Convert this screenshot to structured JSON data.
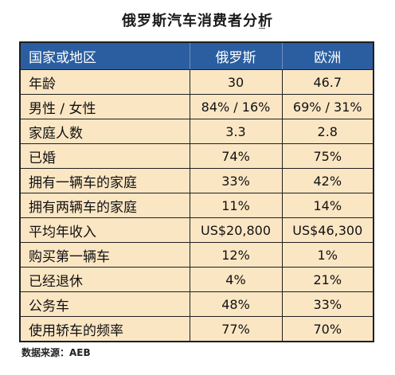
{
  "title": "俄罗斯汽车消费者分析",
  "table": {
    "headers": [
      "国家或地区",
      "俄罗斯",
      "欧洲"
    ],
    "rows": [
      {
        "label": "年龄",
        "russia": "30",
        "europe": "46.7"
      },
      {
        "label": "男性 / 女性",
        "russia": "84% / 16%",
        "europe": "69% / 31%"
      },
      {
        "label": "家庭人数",
        "russia": "3.3",
        "europe": "2.8"
      },
      {
        "label": "已婚",
        "russia": "74%",
        "europe": "75%"
      },
      {
        "label": "拥有一辆车的家庭",
        "russia": "33%",
        "europe": "42%"
      },
      {
        "label": "拥有两辆车的家庭",
        "russia": "11%",
        "europe": "14%"
      },
      {
        "label": "平均年收入",
        "russia": "US$20,800",
        "europe": "US$46,300"
      },
      {
        "label": "购买第一辆车",
        "russia": "12%",
        "europe": "1%"
      },
      {
        "label": "已经退休",
        "russia": "4%",
        "europe": "21%"
      },
      {
        "label": "公务车",
        "russia": "48%",
        "europe": "33%"
      },
      {
        "label": "使用轿车的频率",
        "russia": "77%",
        "europe": "70%"
      }
    ]
  },
  "source": "数据来源：AEB",
  "colors": {
    "header_bg": "#2a5ea0",
    "row_bg": "#fbe6c4",
    "border": "#1f1f1f"
  }
}
